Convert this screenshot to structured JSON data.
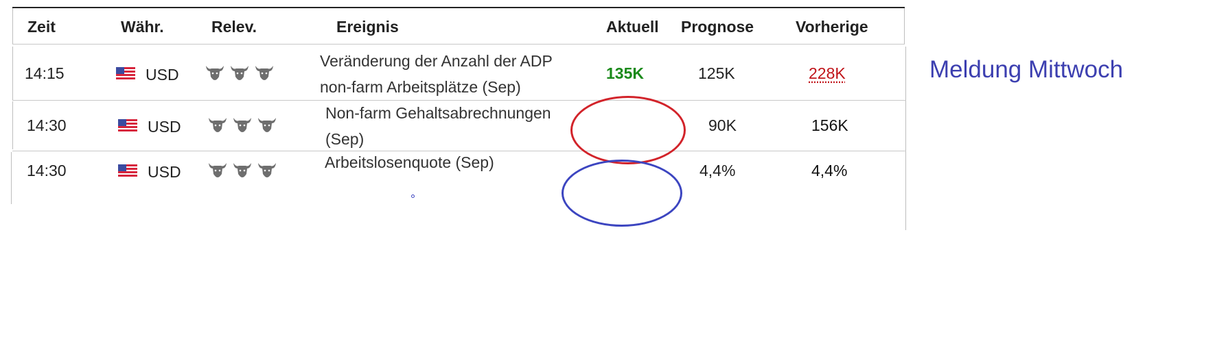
{
  "table": {
    "headers": {
      "time": "Zeit",
      "currency": "Währ.",
      "relevance": "Relev.",
      "event": "Ereignis",
      "actual": "Aktuell",
      "forecast": "Prognose",
      "previous": "Vorherige"
    },
    "rows": [
      {
        "time": "14:15",
        "flag": "us-flag-icon",
        "currency": "USD",
        "relevance": 3,
        "event_line1": "Veränderung der Anzahl der ADP",
        "event_line2": "non-farm Arbeitsplätze (Sep)",
        "actual": "135K",
        "forecast": "125K",
        "previous": "228K"
      },
      {
        "time": "14:30",
        "flag": "us-flag-icon",
        "currency": "USD",
        "relevance": 3,
        "event_line1": "Non-farm Gehaltsabrechnungen",
        "event_line2": "(Sep)",
        "actual": "",
        "forecast": "90K",
        "previous": "156K"
      },
      {
        "time": "14:30",
        "flag": "us-flag-icon",
        "currency": "USD",
        "relevance": 3,
        "event_line1": "Arbeitslosenquote (Sep)",
        "event_line2": "",
        "actual": "",
        "forecast": "4,4%",
        "previous": "4,4%"
      }
    ]
  },
  "annotation": {
    "note": "Meldung Mittwoch",
    "red_circle_color": "#d2232a",
    "blue_circle_color": "#3c45c0",
    "note_color": "#3c3fb0"
  },
  "colors": {
    "actual_positive": "#1a8a1a",
    "previous_negative": "#c0141a"
  }
}
